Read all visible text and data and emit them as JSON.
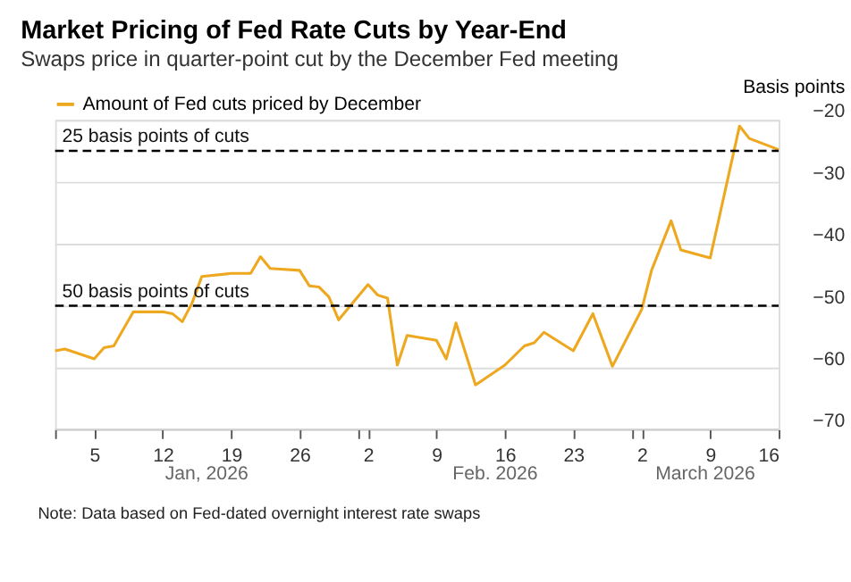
{
  "chart_data": {
    "type": "line",
    "title": "Market Pricing of Fed Rate Cuts by Year-End",
    "subtitle": "Swaps price in quarter-point cut by the December Fed meeting",
    "ylabel": "Basis points",
    "x": [
      "2026-01-01",
      "2026-01-02",
      "2026-01-05",
      "2026-01-06",
      "2026-01-07",
      "2026-01-09",
      "2026-01-12",
      "2026-01-13",
      "2026-01-14",
      "2026-01-15",
      "2026-01-16",
      "2026-01-19",
      "2026-01-21",
      "2026-01-22",
      "2026-01-23",
      "2026-01-26",
      "2026-01-27",
      "2026-01-28",
      "2026-01-29",
      "2026-01-30",
      "2026-02-02",
      "2026-02-03",
      "2026-02-04",
      "2026-02-05",
      "2026-02-06",
      "2026-02-09",
      "2026-02-10",
      "2026-02-11",
      "2026-02-13",
      "2026-02-16",
      "2026-02-18",
      "2026-02-19",
      "2026-02-20",
      "2026-02-23",
      "2026-02-25",
      "2026-02-27",
      "2026-03-02",
      "2026-03-03",
      "2026-03-05",
      "2026-03-06",
      "2026-03-09",
      "2026-03-12",
      "2026-03-13",
      "2026-03-16"
    ],
    "series": [
      {
        "name": "Amount of Fed cuts priced by December",
        "color": "#eea820",
        "values": [
          -57.3,
          -57.0,
          -58.6,
          -56.8,
          -56.5,
          -51.0,
          -51.0,
          -51.3,
          -52.6,
          -49.6,
          -45.3,
          -44.8,
          -44.8,
          -42.1,
          -44.0,
          -44.3,
          -46.8,
          -47.0,
          -48.6,
          -52.3,
          -46.6,
          -48.3,
          -48.8,
          -59.6,
          -54.8,
          -55.6,
          -58.6,
          -52.8,
          -62.8,
          -59.6,
          -56.5,
          -56.0,
          -54.3,
          -57.3,
          -51.3,
          -59.8,
          -50.6,
          -44.3,
          -36.3,
          -41.0,
          -42.3,
          -21.0,
          -23.0,
          -24.8
        ]
      }
    ],
    "xlim": [
      "2026-01-01",
      "2026-03-16"
    ],
    "xticks": [
      {
        "value": "2026-01-01",
        "label": null
      },
      {
        "value": "2026-01-05",
        "label": "5"
      },
      {
        "value": "2026-01-12",
        "label": "12"
      },
      {
        "value": "2026-01-19",
        "label": "19"
      },
      {
        "value": "2026-01-26",
        "label": "26"
      },
      {
        "value": "2026-02-01",
        "label": null
      },
      {
        "value": "2026-02-02",
        "label": "2"
      },
      {
        "value": "2026-02-09",
        "label": "9"
      },
      {
        "value": "2026-02-16",
        "label": "16"
      },
      {
        "value": "2026-02-23",
        "label": "23"
      },
      {
        "value": "2026-03-01",
        "label": null
      },
      {
        "value": "2026-03-02",
        "label": "2"
      },
      {
        "value": "2026-03-09",
        "label": "9"
      },
      {
        "value": "2026-03-16",
        "label": "16"
      }
    ],
    "ylim": [
      -70,
      -20
    ],
    "yticks": [
      -20,
      -30,
      -40,
      -50,
      -60,
      -70
    ],
    "ref_lines": [
      {
        "axis": "y",
        "value": -25,
        "label": "25 basis points of cuts",
        "color": "#000000",
        "line_style": "dashed"
      },
      {
        "axis": "y",
        "value": -50,
        "label": "50 basis points of cuts",
        "color": "#000000",
        "line_style": "dashed"
      }
    ],
    "annotations": [
      "Jan, 2026",
      "Feb. 2026",
      "March 2026",
      "Note: Data based on Fed-dated overnight interest rate swaps"
    ],
    "grid": "y",
    "legend": "top",
    "marker": "none",
    "line_style": "solid"
  }
}
